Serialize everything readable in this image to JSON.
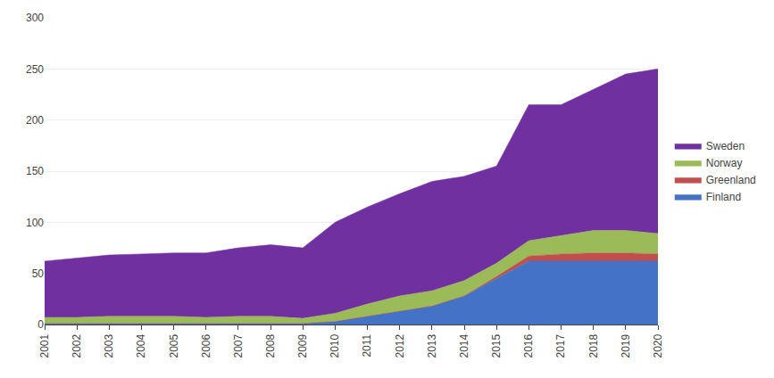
{
  "chart_data": {
    "type": "area",
    "stacked": true,
    "x": [
      2001,
      2002,
      2003,
      2004,
      2005,
      2006,
      2007,
      2008,
      2009,
      2010,
      2011,
      2012,
      2013,
      2014,
      2015,
      2016,
      2017,
      2018,
      2019,
      2020
    ],
    "series": [
      {
        "name": "Finland",
        "color": "#4472C4",
        "values": [
          1,
          1,
          1,
          1,
          1,
          1,
          1,
          1,
          1,
          3,
          8,
          13,
          18,
          28,
          45,
          62,
          62,
          62,
          62,
          62
        ]
      },
      {
        "name": "Greenland",
        "color": "#C0504D",
        "values": [
          0,
          0,
          0,
          0,
          0,
          0,
          0,
          0,
          0,
          0,
          0,
          0,
          0,
          0,
          2,
          5,
          7,
          8,
          8,
          7
        ]
      },
      {
        "name": "Norway",
        "color": "#9BBB59",
        "values": [
          6,
          6,
          7,
          7,
          7,
          6,
          7,
          7,
          5,
          8,
          12,
          15,
          15,
          15,
          13,
          15,
          18,
          22,
          22,
          20
        ]
      },
      {
        "name": "Sweden",
        "color": "#7030A0",
        "values": [
          55,
          58,
          60,
          61,
          62,
          63,
          67,
          70,
          69,
          89,
          95,
          100,
          107,
          102,
          95,
          133,
          128,
          138,
          153,
          161
        ]
      }
    ],
    "xlim": [
      2001,
      2020
    ],
    "xticks": [
      2001,
      2002,
      2003,
      2004,
      2005,
      2006,
      2007,
      2008,
      2009,
      2010,
      2011,
      2012,
      2013,
      2014,
      2015,
      2016,
      2017,
      2018,
      2019,
      2020
    ],
    "ylim": [
      0,
      300
    ],
    "yticks": [
      0,
      50,
      100,
      150,
      200,
      250,
      300
    ],
    "grid": true,
    "legend": "right"
  }
}
